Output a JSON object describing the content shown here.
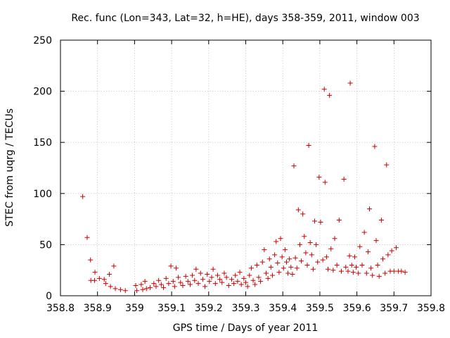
{
  "chart_data": {
    "type": "scatter",
    "title": "Rec. func (Lon=343, Lat=32, h=HE), days 358-359, 2011, window 003",
    "xlabel": "GPS time / Days of year 2011",
    "ylabel": "STEC from uqrg / TECUs",
    "xlim": [
      358.8,
      359.8
    ],
    "ylim": [
      0,
      250
    ],
    "x_ticks": [
      358.8,
      358.9,
      359.0,
      359.1,
      359.2,
      359.3,
      359.4,
      359.5,
      359.6,
      359.7,
      359.8
    ],
    "x_tick_labels": [
      "358.8",
      "358.9",
      "359",
      "359.1",
      "359.2",
      "359.3",
      "359.4",
      "359.5",
      "359.6",
      "359.7",
      "359.8"
    ],
    "y_ticks": [
      0,
      50,
      100,
      150,
      200,
      250
    ],
    "y_tick_labels": [
      "0",
      "50",
      "100",
      "150",
      "200",
      "250"
    ],
    "grid": true,
    "marker": "+",
    "color": "#cc0000",
    "series": [
      {
        "name": "STEC",
        "points": [
          [
            358.86,
            97
          ],
          [
            358.872,
            57
          ],
          [
            358.881,
            35
          ],
          [
            358.882,
            15
          ],
          [
            358.893,
            23
          ],
          [
            358.892,
            15
          ],
          [
            358.905,
            17
          ],
          [
            358.918,
            16
          ],
          [
            358.922,
            12
          ],
          [
            358.932,
            21
          ],
          [
            358.935,
            9
          ],
          [
            358.944,
            29
          ],
          [
            358.948,
            7
          ],
          [
            358.962,
            6
          ],
          [
            358.975,
            5
          ],
          [
            359.003,
            10
          ],
          [
            359.006,
            5
          ],
          [
            359.018,
            11
          ],
          [
            359.022,
            6
          ],
          [
            359.028,
            14
          ],
          [
            359.032,
            7
          ],
          [
            359.042,
            8
          ],
          [
            359.052,
            12
          ],
          [
            359.058,
            9
          ],
          [
            359.065,
            15
          ],
          [
            359.072,
            11
          ],
          [
            359.078,
            8
          ],
          [
            359.085,
            17
          ],
          [
            359.092,
            12
          ],
          [
            359.098,
            29
          ],
          [
            359.104,
            14
          ],
          [
            359.108,
            9
          ],
          [
            359.112,
            27
          ],
          [
            359.118,
            18
          ],
          [
            359.124,
            13
          ],
          [
            359.13,
            10
          ],
          [
            359.138,
            19
          ],
          [
            359.144,
            14
          ],
          [
            359.15,
            11
          ],
          [
            359.156,
            20
          ],
          [
            359.162,
            15
          ],
          [
            359.166,
            26
          ],
          [
            359.172,
            12
          ],
          [
            359.178,
            22
          ],
          [
            359.184,
            16
          ],
          [
            359.19,
            9
          ],
          [
            359.196,
            21
          ],
          [
            359.202,
            14
          ],
          [
            359.208,
            18
          ],
          [
            359.212,
            26
          ],
          [
            359.218,
            12
          ],
          [
            359.224,
            20
          ],
          [
            359.23,
            16
          ],
          [
            359.236,
            13
          ],
          [
            359.242,
            22
          ],
          [
            359.248,
            18
          ],
          [
            359.254,
            10
          ],
          [
            359.262,
            16
          ],
          [
            359.268,
            12
          ],
          [
            359.272,
            20
          ],
          [
            359.278,
            14
          ],
          [
            359.284,
            23
          ],
          [
            359.288,
            11
          ],
          [
            359.295,
            17
          ],
          [
            359.3,
            13
          ],
          [
            359.305,
            9
          ],
          [
            359.31,
            20
          ],
          [
            359.315,
            27
          ],
          [
            359.32,
            15
          ],
          [
            359.325,
            11
          ],
          [
            359.33,
            30
          ],
          [
            359.335,
            18
          ],
          [
            359.34,
            14
          ],
          [
            359.345,
            33
          ],
          [
            359.35,
            45
          ],
          [
            359.355,
            22
          ],
          [
            359.36,
            17
          ],
          [
            359.364,
            36
          ],
          [
            359.368,
            28
          ],
          [
            359.372,
            20
          ],
          [
            359.378,
            40
          ],
          [
            359.382,
            53
          ],
          [
            359.386,
            32
          ],
          [
            359.39,
            23
          ],
          [
            359.394,
            56
          ],
          [
            359.398,
            38
          ],
          [
            359.402,
            27
          ],
          [
            359.406,
            45
          ],
          [
            359.41,
            33
          ],
          [
            359.414,
            22
          ],
          [
            359.418,
            36
          ],
          [
            359.422,
            28
          ],
          [
            359.426,
            21
          ],
          [
            359.43,
            127
          ],
          [
            359.434,
            37
          ],
          [
            359.438,
            27
          ],
          [
            359.442,
            84
          ],
          [
            359.446,
            50
          ],
          [
            359.45,
            34
          ],
          [
            359.454,
            80
          ],
          [
            359.458,
            58
          ],
          [
            359.462,
            42
          ],
          [
            359.466,
            30
          ],
          [
            359.47,
            147
          ],
          [
            359.474,
            52
          ],
          [
            359.478,
            40
          ],
          [
            359.482,
            26
          ],
          [
            359.486,
            73
          ],
          [
            359.49,
            50
          ],
          [
            359.494,
            33
          ],
          [
            359.498,
            116
          ],
          [
            359.502,
            72
          ],
          [
            359.508,
            35
          ],
          [
            359.512,
            202
          ],
          [
            359.514,
            111
          ],
          [
            359.518,
            38
          ],
          [
            359.522,
            26
          ],
          [
            359.526,
            196
          ],
          [
            359.53,
            46
          ],
          [
            359.536,
            25
          ],
          [
            359.54,
            56
          ],
          [
            359.546,
            30
          ],
          [
            359.552,
            74
          ],
          [
            359.558,
            24
          ],
          [
            359.565,
            114
          ],
          [
            359.57,
            28
          ],
          [
            359.576,
            24
          ],
          [
            359.58,
            39
          ],
          [
            359.582,
            208
          ],
          [
            359.586,
            30
          ],
          [
            359.59,
            23
          ],
          [
            359.594,
            38
          ],
          [
            359.598,
            28
          ],
          [
            359.604,
            22
          ],
          [
            359.608,
            48
          ],
          [
            359.614,
            30
          ],
          [
            359.62,
            62
          ],
          [
            359.626,
            22
          ],
          [
            359.63,
            43
          ],
          [
            359.634,
            85
          ],
          [
            359.638,
            27
          ],
          [
            359.642,
            20
          ],
          [
            359.648,
            146
          ],
          [
            359.652,
            54
          ],
          [
            359.656,
            30
          ],
          [
            359.66,
            19
          ],
          [
            359.666,
            74
          ],
          [
            359.67,
            36
          ],
          [
            359.676,
            22
          ],
          [
            359.68,
            128
          ],
          [
            359.684,
            40
          ],
          [
            359.69,
            24
          ],
          [
            359.694,
            44
          ],
          [
            359.7,
            24
          ],
          [
            359.706,
            47
          ],
          [
            359.712,
            24
          ],
          [
            359.72,
            24
          ],
          [
            359.73,
            23
          ]
        ]
      }
    ]
  }
}
